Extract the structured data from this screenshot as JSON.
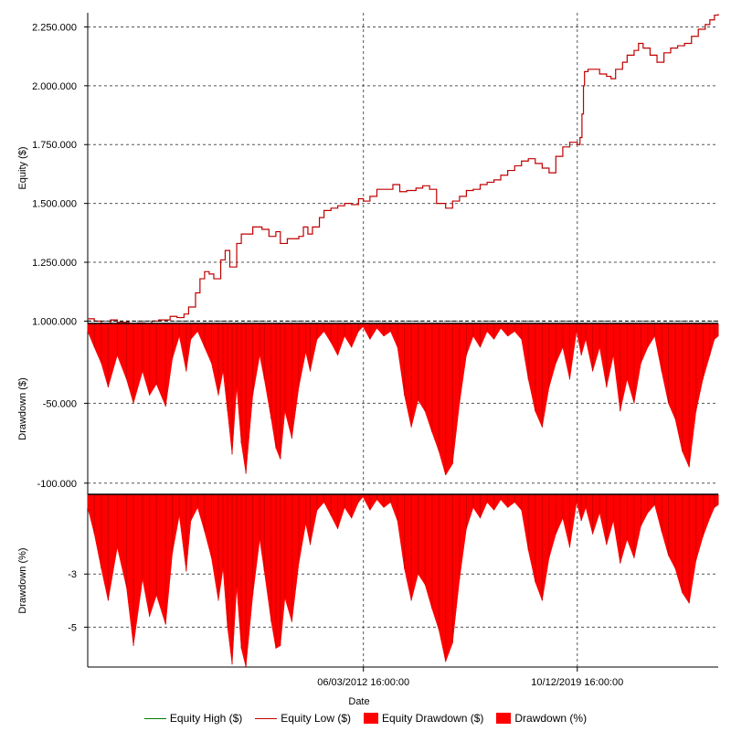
{
  "chart_data": [
    {
      "panel": "equity",
      "type": "line",
      "ylabel": "Equity ($)",
      "ylim": [
        990000,
        2310000
      ],
      "yticks": [
        1000000,
        1250000,
        1500000,
        1750000,
        2000000,
        2250000
      ],
      "ytick_labels": [
        "1.000.000",
        "1.250.000",
        "1.500.000",
        "1.750.000",
        "2.000.000",
        "2.250.000"
      ],
      "series": [
        {
          "name": "Equity Low ($)",
          "color": "#c00000",
          "x": [
            "2002-03-05",
            "2002-06-01",
            "2002-09-01",
            "2003-01-01",
            "2003-04-01",
            "2003-09-01",
            "2004-01-01",
            "2004-04-01",
            "2004-07-01",
            "2004-10-01",
            "2005-03-01",
            "2005-06-01",
            "2005-09-01",
            "2005-11-01",
            "2006-02-01",
            "2006-04-01",
            "2006-06-01",
            "2006-08-01",
            "2006-10-01",
            "2007-01-01",
            "2007-03-01",
            "2007-05-01",
            "2007-08-01",
            "2007-10-01",
            "2008-03-01",
            "2008-07-01",
            "2008-10-01",
            "2009-01-01",
            "2009-03-01",
            "2009-06-01",
            "2009-09-01",
            "2009-11-01",
            "2010-01-01",
            "2010-03-01",
            "2010-05-01",
            "2010-08-01",
            "2010-10-01",
            "2011-01-01",
            "2011-04-01",
            "2011-07-01",
            "2011-10-01",
            "2012-01-01",
            "2012-03-06",
            "2012-06-01",
            "2012-09-01",
            "2013-01-01",
            "2013-04-01",
            "2013-07-01",
            "2013-10-01",
            "2014-02-01",
            "2014-05-01",
            "2014-08-01",
            "2014-11-01",
            "2015-03-01",
            "2015-06-01",
            "2015-09-01",
            "2015-12-01",
            "2016-03-01",
            "2016-06-01",
            "2016-09-01",
            "2016-12-01",
            "2017-03-01",
            "2017-06-01",
            "2017-09-01",
            "2017-12-01",
            "2018-03-01",
            "2018-06-01",
            "2018-09-01",
            "2018-12-01",
            "2019-03-01",
            "2019-06-01",
            "2019-09-01",
            "2019-12-10",
            "2020-01-15",
            "2020-02-10",
            "2020-03-01",
            "2020-03-15",
            "2020-04-01",
            "2020-05-01",
            "2020-07-01",
            "2020-10-01",
            "2021-01-01",
            "2021-03-01",
            "2021-05-01",
            "2021-08-01",
            "2021-10-01",
            "2022-01-01",
            "2022-03-01",
            "2022-05-01",
            "2022-08-01",
            "2022-11-01",
            "2023-02-01",
            "2023-05-01",
            "2023-08-01",
            "2023-11-01",
            "2024-02-01",
            "2024-05-01",
            "2024-08-01",
            "2024-10-01",
            "2024-12-01",
            "2025-01-20"
          ],
          "y": [
            1010000,
            1000000,
            990000,
            1005000,
            995000,
            985000,
            992000,
            988000,
            1000000,
            1005000,
            1020000,
            1015000,
            1030000,
            1060000,
            1120000,
            1180000,
            1210000,
            1200000,
            1180000,
            1260000,
            1300000,
            1230000,
            1330000,
            1370000,
            1400000,
            1390000,
            1360000,
            1380000,
            1330000,
            1350000,
            1350000,
            1360000,
            1400000,
            1370000,
            1400000,
            1440000,
            1470000,
            1480000,
            1490000,
            1500000,
            1495000,
            1520000,
            1510000,
            1530000,
            1560000,
            1560000,
            1580000,
            1550000,
            1555000,
            1565000,
            1575000,
            1560000,
            1500000,
            1480000,
            1510000,
            1530000,
            1555000,
            1560000,
            1580000,
            1590000,
            1600000,
            1620000,
            1640000,
            1660000,
            1680000,
            1690000,
            1670000,
            1650000,
            1630000,
            1700000,
            1740000,
            1760000,
            1750000,
            1780000,
            1880000,
            2000000,
            2060000,
            2060000,
            2070000,
            2070000,
            2050000,
            2040000,
            2030000,
            2070000,
            2100000,
            2130000,
            2150000,
            2180000,
            2160000,
            2130000,
            2100000,
            2140000,
            2160000,
            2170000,
            2180000,
            2210000,
            2240000,
            2260000,
            2280000,
            2300000,
            2305000
          ]
        }
      ]
    },
    {
      "panel": "drawdown-dollars",
      "type": "area",
      "ylabel": "Drawdown ($)",
      "ylim": [
        -107000,
        0
      ],
      "yticks": [
        -50000,
        -100000
      ],
      "ytick_labels": [
        "-50.000",
        "-100.000"
      ],
      "series": [
        {
          "name": "Equity Drawdown ($)",
          "color": "#ff0000",
          "x": [
            "2002-03-05",
            "2002-06-01",
            "2002-09-01",
            "2002-12-01",
            "2003-04-01",
            "2003-08-01",
            "2003-11-01",
            "2004-03-01",
            "2004-06-01",
            "2004-09-01",
            "2005-01-01",
            "2005-04-01",
            "2005-07-01",
            "2005-10-01",
            "2005-12-01",
            "2006-03-01",
            "2006-06-01",
            "2006-09-01",
            "2006-12-01",
            "2007-02-01",
            "2007-04-01",
            "2007-06-01",
            "2007-08-01",
            "2007-10-01",
            "2007-12-01",
            "2008-03-01",
            "2008-06-01",
            "2008-08-01",
            "2008-11-01",
            "2009-01-01",
            "2009-03-01",
            "2009-05-01",
            "2009-08-01",
            "2009-11-01",
            "2010-02-01",
            "2010-04-01",
            "2010-07-01",
            "2010-10-01",
            "2011-01-01",
            "2011-04-01",
            "2011-07-01",
            "2011-10-01",
            "2012-01-01",
            "2012-03-01",
            "2012-06-01",
            "2012-09-01",
            "2012-12-01",
            "2013-03-01",
            "2013-06-01",
            "2013-09-01",
            "2013-12-01",
            "2014-03-01",
            "2014-06-01",
            "2014-09-01",
            "2014-12-01",
            "2015-03-01",
            "2015-06-01",
            "2015-09-01",
            "2015-12-01",
            "2016-03-01",
            "2016-06-01",
            "2016-09-01",
            "2016-12-01",
            "2017-03-01",
            "2017-06-01",
            "2017-09-01",
            "2017-12-01",
            "2018-03-01",
            "2018-06-01",
            "2018-09-01",
            "2018-12-01",
            "2019-03-01",
            "2019-06-01",
            "2019-09-01",
            "2019-12-01",
            "2020-02-01",
            "2020-04-01",
            "2020-07-01",
            "2020-10-01",
            "2021-01-01",
            "2021-04-01",
            "2021-07-01",
            "2021-10-01",
            "2022-01-01",
            "2022-04-01",
            "2022-07-01",
            "2022-10-01",
            "2023-01-01",
            "2023-04-01",
            "2023-07-01",
            "2023-10-01",
            "2024-01-01",
            "2024-04-01",
            "2024-07-01",
            "2024-10-01",
            "2024-12-01",
            "2025-01-20"
          ],
          "y": [
            -5000,
            -15000,
            -25000,
            -40000,
            -20000,
            -35000,
            -50000,
            -30000,
            -45000,
            -38000,
            -52000,
            -22000,
            -8000,
            -30000,
            -10000,
            -5000,
            -15000,
            -25000,
            -45000,
            -30000,
            -55000,
            -82000,
            -40000,
            -75000,
            -94000,
            -45000,
            -20000,
            -35000,
            -60000,
            -78000,
            -85000,
            -55000,
            -72000,
            -40000,
            -18000,
            -30000,
            -10000,
            -5000,
            -12000,
            -20000,
            -8000,
            -15000,
            -5000,
            -2000,
            -10000,
            -3000,
            -8000,
            -5000,
            -15000,
            -45000,
            -65000,
            -48000,
            -55000,
            -68000,
            -80000,
            -95000,
            -88000,
            -50000,
            -20000,
            -8000,
            -15000,
            -5000,
            -10000,
            -3000,
            -8000,
            -5000,
            -10000,
            -35000,
            -55000,
            -65000,
            -40000,
            -25000,
            -15000,
            -35000,
            -5000,
            -20000,
            -10000,
            -30000,
            -15000,
            -40000,
            -20000,
            -55000,
            -35000,
            -50000,
            -25000,
            -15000,
            -8000,
            -30000,
            -50000,
            -60000,
            -80000,
            -90000,
            -55000,
            -35000,
            -20000,
            -10000,
            -8000
          ]
        }
      ]
    },
    {
      "panel": "drawdown-percent",
      "type": "area",
      "ylabel": "Drawdown (%)",
      "ylim": [
        -6.5,
        0
      ],
      "yticks": [
        -3,
        -5
      ],
      "ytick_labels": [
        "-3",
        "-5"
      ],
      "series": [
        {
          "name": "Drawdown (%)",
          "color": "#ff0000",
          "x": [
            "2002-03-05",
            "2002-06-01",
            "2002-09-01",
            "2002-12-01",
            "2003-04-01",
            "2003-08-01",
            "2003-11-01",
            "2004-03-01",
            "2004-06-01",
            "2004-09-01",
            "2005-01-01",
            "2005-04-01",
            "2005-07-01",
            "2005-10-01",
            "2005-12-01",
            "2006-03-01",
            "2006-06-01",
            "2006-09-01",
            "2006-12-01",
            "2007-02-01",
            "2007-04-01",
            "2007-06-01",
            "2007-08-01",
            "2007-10-01",
            "2007-12-01",
            "2008-03-01",
            "2008-06-01",
            "2008-08-01",
            "2008-11-01",
            "2009-01-01",
            "2009-03-01",
            "2009-05-01",
            "2009-08-01",
            "2009-11-01",
            "2010-02-01",
            "2010-04-01",
            "2010-07-01",
            "2010-10-01",
            "2011-01-01",
            "2011-04-01",
            "2011-07-01",
            "2011-10-01",
            "2012-01-01",
            "2012-03-01",
            "2012-06-01",
            "2012-09-01",
            "2012-12-01",
            "2013-03-01",
            "2013-06-01",
            "2013-09-01",
            "2013-12-01",
            "2014-03-01",
            "2014-06-01",
            "2014-09-01",
            "2014-12-01",
            "2015-03-01",
            "2015-06-01",
            "2015-09-01",
            "2015-12-01",
            "2016-03-01",
            "2016-06-01",
            "2016-09-01",
            "2016-12-01",
            "2017-03-01",
            "2017-06-01",
            "2017-09-01",
            "2017-12-01",
            "2018-03-01",
            "2018-06-01",
            "2018-09-01",
            "2018-12-01",
            "2019-03-01",
            "2019-06-01",
            "2019-09-01",
            "2019-12-01",
            "2020-02-01",
            "2020-04-01",
            "2020-07-01",
            "2020-10-01",
            "2021-01-01",
            "2021-04-01",
            "2021-07-01",
            "2021-10-01",
            "2022-01-01",
            "2022-04-01",
            "2022-07-01",
            "2022-10-01",
            "2023-01-01",
            "2023-04-01",
            "2023-07-01",
            "2023-10-01",
            "2024-01-01",
            "2024-04-01",
            "2024-07-01",
            "2024-10-01",
            "2024-12-01",
            "2025-01-20"
          ],
          "y": [
            -0.5,
            -1.5,
            -2.8,
            -4.0,
            -2.0,
            -3.5,
            -5.7,
            -3.2,
            -4.6,
            -3.8,
            -4.9,
            -2.2,
            -0.8,
            -2.9,
            -1.0,
            -0.5,
            -1.4,
            -2.4,
            -4.0,
            -2.8,
            -5.0,
            -6.4,
            -3.5,
            -5.8,
            -6.5,
            -3.8,
            -1.7,
            -2.9,
            -4.8,
            -5.8,
            -5.7,
            -3.9,
            -4.8,
            -2.6,
            -1.1,
            -1.9,
            -0.6,
            -0.3,
            -0.8,
            -1.3,
            -0.5,
            -0.9,
            -0.3,
            -0.1,
            -0.6,
            -0.2,
            -0.5,
            -0.3,
            -1.0,
            -2.8,
            -4.0,
            -3.0,
            -3.4,
            -4.3,
            -5.1,
            -6.3,
            -5.6,
            -3.2,
            -1.3,
            -0.5,
            -0.9,
            -0.3,
            -0.6,
            -0.2,
            -0.5,
            -0.3,
            -0.6,
            -2.1,
            -3.3,
            -4.0,
            -2.4,
            -1.5,
            -0.9,
            -2.0,
            -0.3,
            -1.0,
            -0.5,
            -1.5,
            -0.7,
            -1.9,
            -1.0,
            -2.6,
            -1.7,
            -2.4,
            -1.2,
            -0.7,
            -0.4,
            -1.4,
            -2.3,
            -2.8,
            -3.7,
            -4.1,
            -2.5,
            -1.6,
            -0.9,
            -0.5,
            -0.4
          ]
        }
      ]
    }
  ],
  "x_axis": {
    "label": "Date",
    "xlim": [
      "2002-03-05",
      "2025-01-20"
    ],
    "ticks": [
      "2012-03-06",
      "2019-12-10"
    ],
    "tick_labels": [
      "06/03/2012 16:00:00",
      "10/12/2019 16:00:00"
    ]
  },
  "legend": {
    "placement": "bottom",
    "items": [
      {
        "label": "Equity High ($)",
        "kind": "line",
        "color": "#008000"
      },
      {
        "label": "Equity Low ($)",
        "kind": "line",
        "color": "#c00000"
      },
      {
        "label": "Equity Drawdown ($)",
        "kind": "box",
        "color": "#ff0000"
      },
      {
        "label": "Drawdown (%)",
        "kind": "box",
        "color": "#ff0000"
      }
    ]
  },
  "grid": true
}
